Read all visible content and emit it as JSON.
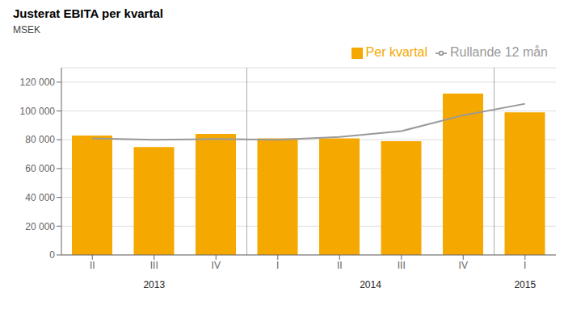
{
  "chart_data": {
    "type": "bar",
    "title": "Justerat EBITA per kvartal",
    "ylabel": "MSEK",
    "categories": [
      "II",
      "III",
      "IV",
      "I",
      "II",
      "III",
      "IV",
      "I"
    ],
    "series": [
      {
        "name": "Per kvartal",
        "type": "bar",
        "color": "#F5A800",
        "values": [
          83000,
          75000,
          84000,
          81000,
          81000,
          79000,
          112000,
          99000
        ]
      },
      {
        "name": "Rullande 12 mån",
        "type": "line",
        "color": "#999999",
        "values": [
          81000,
          80000,
          80500,
          80000,
          82000,
          86000,
          97000,
          105000
        ]
      }
    ],
    "annotations": [
      "2013",
      "2014",
      "2015"
    ],
    "ylim": [
      0,
      130000
    ],
    "yticks": [
      0,
      {
        "value": 20000,
        "label": "20 000"
      },
      {
        "value": 40000,
        "label": "40 000"
      },
      {
        "value": 60000,
        "label": "60 000"
      },
      {
        "value": 80000,
        "label": "80 000"
      },
      {
        "value": 100000,
        "label": "100 000"
      },
      {
        "value": 120000,
        "label": "120 000"
      }
    ],
    "grid": true,
    "legend": "upper right"
  }
}
